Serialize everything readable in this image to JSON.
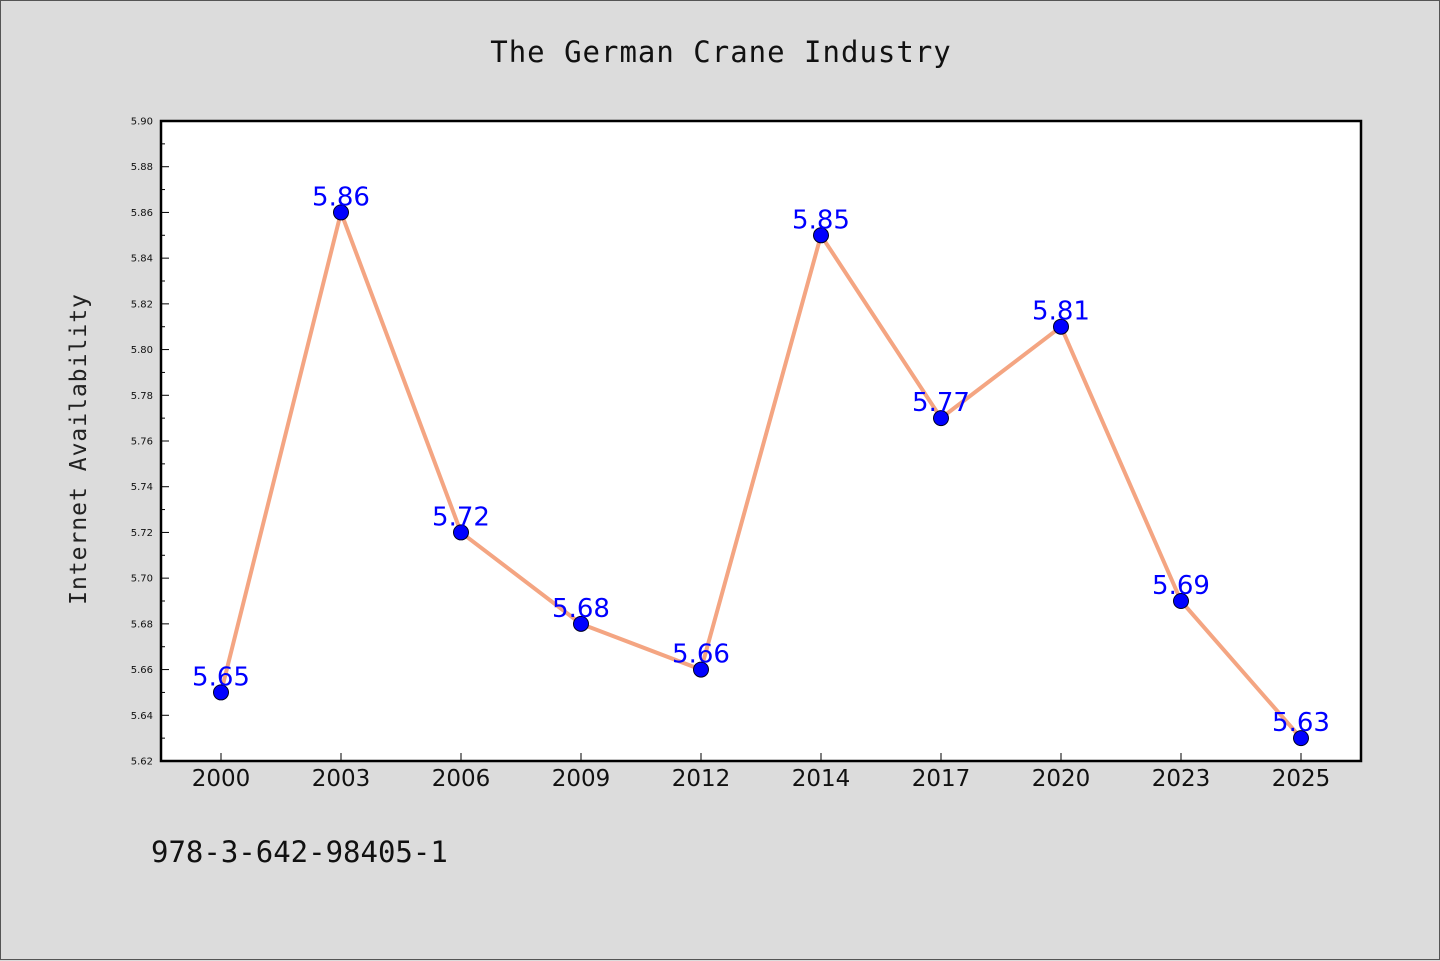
{
  "chart_data": {
    "type": "line",
    "title": "The German Crane Industry",
    "xlabel": "",
    "ylabel": "Internet Availability",
    "categories": [
      "2000",
      "2003",
      "2006",
      "2009",
      "2012",
      "2014",
      "2017",
      "2020",
      "2023",
      "2025"
    ],
    "series": [
      {
        "values": [
          5.65,
          5.86,
          5.72,
          5.68,
          5.66,
          5.85,
          5.77,
          5.81,
          5.69,
          5.63
        ]
      }
    ],
    "data_labels": [
      "5.65",
      "5.86",
      "5.72",
      "5.68",
      "5.66",
      "5.85",
      "5.77",
      "5.81",
      "5.69",
      "5.63"
    ],
    "ylim": [
      5.62,
      5.9
    ],
    "yticks": [
      "5.62",
      "5.64",
      "5.66",
      "5.68",
      "5.70",
      "5.72",
      "5.74",
      "5.76",
      "5.78",
      "5.80",
      "5.82",
      "5.84",
      "5.86",
      "5.88",
      "5.90"
    ],
    "grid": false,
    "colors": {
      "line": "#f4a582",
      "marker": "#0000ff",
      "label": "#0000ff",
      "background": "#dcdcdc",
      "plot_background": "#ffffff"
    }
  },
  "footer": {
    "code": "978-3-642-98405-1"
  }
}
